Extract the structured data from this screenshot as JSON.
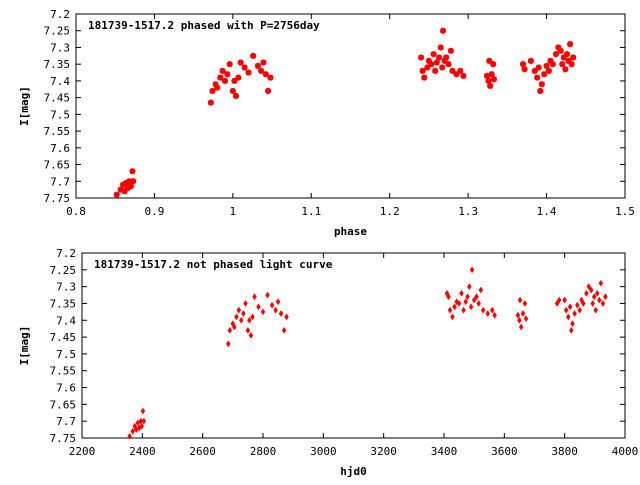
{
  "chart_data": [
    {
      "type": "scatter",
      "title": "181739-1517.2 phased with P=2756day",
      "xlabel": "phase",
      "ylabel": "I[mag]",
      "xlim": [
        0.8,
        1.5
      ],
      "ylim": [
        7.75,
        7.2
      ],
      "y_inverted": true,
      "xticks": [
        "0.8",
        "0.9",
        "1",
        "1.1",
        "1.2",
        "1.3",
        "1.4",
        "1.5"
      ],
      "yticks": [
        "7.2",
        "7.25",
        "7.3",
        "7.35",
        "7.4",
        "7.45",
        "7.5",
        "7.55",
        "7.6",
        "7.65",
        "7.7",
        "7.75"
      ],
      "marker": "star",
      "color": "#ff0000",
      "grid": false,
      "points": [
        {
          "x": 0.852,
          "y": 7.74
        },
        {
          "x": 0.857,
          "y": 7.725
        },
        {
          "x": 0.86,
          "y": 7.71
        },
        {
          "x": 0.862,
          "y": 7.73
        },
        {
          "x": 0.864,
          "y": 7.705
        },
        {
          "x": 0.866,
          "y": 7.72
        },
        {
          "x": 0.868,
          "y": 7.7
        },
        {
          "x": 0.87,
          "y": 7.715
        },
        {
          "x": 0.872,
          "y": 7.67
        },
        {
          "x": 0.873,
          "y": 7.7
        },
        {
          "x": 0.972,
          "y": 7.465
        },
        {
          "x": 0.974,
          "y": 7.43
        },
        {
          "x": 0.978,
          "y": 7.41
        },
        {
          "x": 0.98,
          "y": 7.42
        },
        {
          "x": 0.984,
          "y": 7.39
        },
        {
          "x": 0.987,
          "y": 7.37
        },
        {
          "x": 0.99,
          "y": 7.4
        },
        {
          "x": 0.993,
          "y": 7.38
        },
        {
          "x": 0.996,
          "y": 7.35
        },
        {
          "x": 1.0,
          "y": 7.43
        },
        {
          "x": 1.002,
          "y": 7.4
        },
        {
          "x": 1.004,
          "y": 7.445
        },
        {
          "x": 1.007,
          "y": 7.39
        },
        {
          "x": 1.01,
          "y": 7.345
        },
        {
          "x": 1.015,
          "y": 7.36
        },
        {
          "x": 1.02,
          "y": 7.375
        },
        {
          "x": 1.026,
          "y": 7.325
        },
        {
          "x": 1.032,
          "y": 7.355
        },
        {
          "x": 1.036,
          "y": 7.37
        },
        {
          "x": 1.039,
          "y": 7.345
        },
        {
          "x": 1.042,
          "y": 7.38
        },
        {
          "x": 1.045,
          "y": 7.43
        },
        {
          "x": 1.048,
          "y": 7.39
        },
        {
          "x": 1.24,
          "y": 7.33
        },
        {
          "x": 1.242,
          "y": 7.37
        },
        {
          "x": 1.244,
          "y": 7.39
        },
        {
          "x": 1.248,
          "y": 7.36
        },
        {
          "x": 1.25,
          "y": 7.34
        },
        {
          "x": 1.253,
          "y": 7.35
        },
        {
          "x": 1.256,
          "y": 7.32
        },
        {
          "x": 1.258,
          "y": 7.37
        },
        {
          "x": 1.26,
          "y": 7.345
        },
        {
          "x": 1.263,
          "y": 7.33
        },
        {
          "x": 1.265,
          "y": 7.3
        },
        {
          "x": 1.267,
          "y": 7.36
        },
        {
          "x": 1.268,
          "y": 7.25
        },
        {
          "x": 1.27,
          "y": 7.34
        },
        {
          "x": 1.272,
          "y": 7.33
        },
        {
          "x": 1.275,
          "y": 7.35
        },
        {
          "x": 1.278,
          "y": 7.31
        },
        {
          "x": 1.28,
          "y": 7.37
        },
        {
          "x": 1.285,
          "y": 7.38
        },
        {
          "x": 1.29,
          "y": 7.37
        },
        {
          "x": 1.294,
          "y": 7.385
        },
        {
          "x": 1.324,
          "y": 7.385
        },
        {
          "x": 1.326,
          "y": 7.4
        },
        {
          "x": 1.327,
          "y": 7.34
        },
        {
          "x": 1.328,
          "y": 7.415
        },
        {
          "x": 1.33,
          "y": 7.38
        },
        {
          "x": 1.332,
          "y": 7.35
        },
        {
          "x": 1.333,
          "y": 7.395
        },
        {
          "x": 1.37,
          "y": 7.35
        },
        {
          "x": 1.372,
          "y": 7.365
        },
        {
          "x": 1.38,
          "y": 7.34
        },
        {
          "x": 1.385,
          "y": 7.37
        },
        {
          "x": 1.388,
          "y": 7.39
        },
        {
          "x": 1.39,
          "y": 7.36
        },
        {
          "x": 1.392,
          "y": 7.43
        },
        {
          "x": 1.394,
          "y": 7.41
        },
        {
          "x": 1.397,
          "y": 7.38
        },
        {
          "x": 1.4,
          "y": 7.355
        },
        {
          "x": 1.403,
          "y": 7.37
        },
        {
          "x": 1.405,
          "y": 7.34
        },
        {
          "x": 1.408,
          "y": 7.35
        },
        {
          "x": 1.412,
          "y": 7.32
        },
        {
          "x": 1.415,
          "y": 7.3
        },
        {
          "x": 1.418,
          "y": 7.31
        },
        {
          "x": 1.42,
          "y": 7.35
        },
        {
          "x": 1.422,
          "y": 7.33
        },
        {
          "x": 1.424,
          "y": 7.365
        },
        {
          "x": 1.426,
          "y": 7.32
        },
        {
          "x": 1.428,
          "y": 7.34
        },
        {
          "x": 1.43,
          "y": 7.29
        },
        {
          "x": 1.432,
          "y": 7.35
        },
        {
          "x": 1.434,
          "y": 7.33
        }
      ]
    },
    {
      "type": "scatter",
      "title": "181739-1517.2 not phased light curve",
      "xlabel": "hjd0",
      "ylabel": "I[mag]",
      "xlim": [
        2200,
        4000
      ],
      "ylim": [
        7.75,
        7.2
      ],
      "y_inverted": true,
      "xticks": [
        "2200",
        "2400",
        "2600",
        "2800",
        "3000",
        "3200",
        "3400",
        "3600",
        "3800",
        "4000"
      ],
      "yticks": [
        "7.2",
        "7.25",
        "7.3",
        "7.35",
        "7.4",
        "7.45",
        "7.5",
        "7.55",
        "7.6",
        "7.65",
        "7.7",
        "7.75"
      ],
      "marker": "diamond",
      "color": "#ff0000",
      "grid": false,
      "points": [
        {
          "x": 2358,
          "y": 7.745
        },
        {
          "x": 2368,
          "y": 7.73
        },
        {
          "x": 2375,
          "y": 7.715
        },
        {
          "x": 2380,
          "y": 7.725
        },
        {
          "x": 2385,
          "y": 7.705
        },
        {
          "x": 2390,
          "y": 7.72
        },
        {
          "x": 2395,
          "y": 7.7
        },
        {
          "x": 2398,
          "y": 7.715
        },
        {
          "x": 2402,
          "y": 7.67
        },
        {
          "x": 2405,
          "y": 7.7
        },
        {
          "x": 2685,
          "y": 7.47
        },
        {
          "x": 2690,
          "y": 7.43
        },
        {
          "x": 2700,
          "y": 7.41
        },
        {
          "x": 2705,
          "y": 7.42
        },
        {
          "x": 2712,
          "y": 7.39
        },
        {
          "x": 2720,
          "y": 7.37
        },
        {
          "x": 2728,
          "y": 7.4
        },
        {
          "x": 2735,
          "y": 7.38
        },
        {
          "x": 2742,
          "y": 7.35
        },
        {
          "x": 2750,
          "y": 7.43
        },
        {
          "x": 2755,
          "y": 7.4
        },
        {
          "x": 2760,
          "y": 7.445
        },
        {
          "x": 2765,
          "y": 7.39
        },
        {
          "x": 2772,
          "y": 7.33
        },
        {
          "x": 2785,
          "y": 7.36
        },
        {
          "x": 2800,
          "y": 7.375
        },
        {
          "x": 2815,
          "y": 7.325
        },
        {
          "x": 2830,
          "y": 7.355
        },
        {
          "x": 2842,
          "y": 7.37
        },
        {
          "x": 2850,
          "y": 7.345
        },
        {
          "x": 2860,
          "y": 7.38
        },
        {
          "x": 2870,
          "y": 7.43
        },
        {
          "x": 2878,
          "y": 7.39
        },
        {
          "x": 3410,
          "y": 7.32
        },
        {
          "x": 3415,
          "y": 7.33
        },
        {
          "x": 3420,
          "y": 7.37
        },
        {
          "x": 3428,
          "y": 7.39
        },
        {
          "x": 3435,
          "y": 7.36
        },
        {
          "x": 3442,
          "y": 7.345
        },
        {
          "x": 3450,
          "y": 7.35
        },
        {
          "x": 3458,
          "y": 7.32
        },
        {
          "x": 3465,
          "y": 7.37
        },
        {
          "x": 3472,
          "y": 7.345
        },
        {
          "x": 3478,
          "y": 7.33
        },
        {
          "x": 3484,
          "y": 7.3
        },
        {
          "x": 3490,
          "y": 7.36
        },
        {
          "x": 3493,
          "y": 7.25
        },
        {
          "x": 3500,
          "y": 7.34
        },
        {
          "x": 3508,
          "y": 7.33
        },
        {
          "x": 3515,
          "y": 7.35
        },
        {
          "x": 3522,
          "y": 7.31
        },
        {
          "x": 3530,
          "y": 7.37
        },
        {
          "x": 3545,
          "y": 7.38
        },
        {
          "x": 3560,
          "y": 7.37
        },
        {
          "x": 3568,
          "y": 7.385
        },
        {
          "x": 3645,
          "y": 7.385
        },
        {
          "x": 3650,
          "y": 7.4
        },
        {
          "x": 3652,
          "y": 7.34
        },
        {
          "x": 3656,
          "y": 7.42
        },
        {
          "x": 3662,
          "y": 7.38
        },
        {
          "x": 3668,
          "y": 7.35
        },
        {
          "x": 3672,
          "y": 7.395
        },
        {
          "x": 3775,
          "y": 7.35
        },
        {
          "x": 3782,
          "y": 7.34
        },
        {
          "x": 3800,
          "y": 7.34
        },
        {
          "x": 3805,
          "y": 7.37
        },
        {
          "x": 3812,
          "y": 7.39
        },
        {
          "x": 3818,
          "y": 7.36
        },
        {
          "x": 3822,
          "y": 7.43
        },
        {
          "x": 3826,
          "y": 7.41
        },
        {
          "x": 3833,
          "y": 7.38
        },
        {
          "x": 3842,
          "y": 7.355
        },
        {
          "x": 3850,
          "y": 7.37
        },
        {
          "x": 3856,
          "y": 7.34
        },
        {
          "x": 3862,
          "y": 7.35
        },
        {
          "x": 3872,
          "y": 7.32
        },
        {
          "x": 3880,
          "y": 7.3
        },
        {
          "x": 3888,
          "y": 7.31
        },
        {
          "x": 3893,
          "y": 7.35
        },
        {
          "x": 3898,
          "y": 7.33
        },
        {
          "x": 3903,
          "y": 7.37
        },
        {
          "x": 3908,
          "y": 7.32
        },
        {
          "x": 3915,
          "y": 7.34
        },
        {
          "x": 3920,
          "y": 7.29
        },
        {
          "x": 3927,
          "y": 7.35
        },
        {
          "x": 3935,
          "y": 7.33
        }
      ]
    }
  ]
}
